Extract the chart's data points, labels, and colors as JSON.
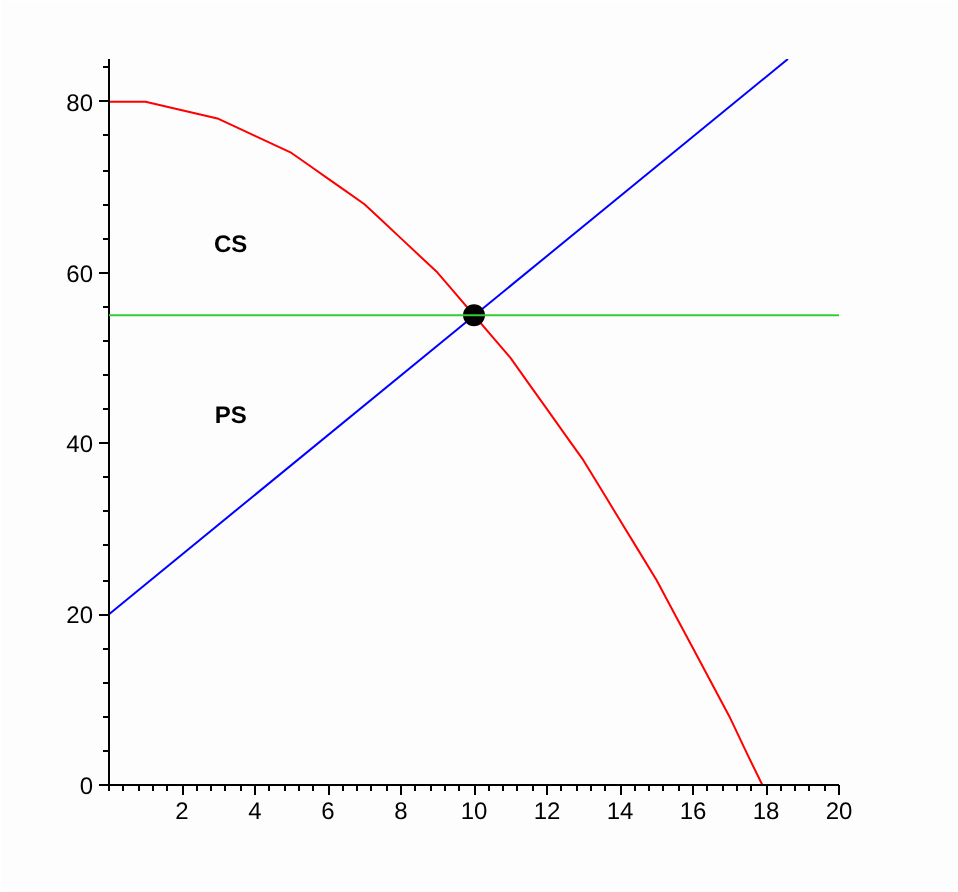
{
  "chart_data": {
    "type": "line",
    "xlim": [
      0,
      20
    ],
    "ylim": [
      0,
      85
    ],
    "xticks": [
      2,
      4,
      6,
      8,
      10,
      12,
      14,
      16,
      18,
      20
    ],
    "yticks": [
      0,
      20,
      40,
      60,
      80
    ],
    "series": [
      {
        "color": "#ff0000",
        "x": [
          0,
          0.5,
          1,
          1.5,
          2,
          2.5,
          3,
          3.5,
          4,
          4.5,
          5,
          5.5,
          6,
          6.5,
          7,
          7.5,
          8,
          8.5,
          9,
          9.5,
          10,
          10.5,
          11,
          11.5,
          12,
          12.5,
          13,
          13.5,
          14,
          14.5,
          15,
          15.5,
          16,
          16.5,
          17,
          17.5,
          17.9
        ],
        "values": [
          80,
          80,
          80,
          79.5,
          79,
          78.5,
          78,
          77,
          76,
          75,
          74,
          72.5,
          71,
          69.5,
          68,
          66,
          64,
          62,
          60,
          57.5,
          55,
          52.5,
          50,
          47,
          44,
          41,
          38,
          34.5,
          31,
          27.5,
          24,
          20,
          16,
          12,
          8,
          3.5,
          0
        ]
      },
      {
        "color": "#0000ff",
        "x": [
          0,
          18.6
        ],
        "values": [
          20,
          85
        ]
      },
      {
        "type": "scatter",
        "marker": "circle",
        "color": "#000000",
        "x": [
          10
        ],
        "values": [
          55
        ]
      }
    ],
    "ref_lines": [
      {
        "axis": "y",
        "value": 55,
        "color": "#33cc33"
      }
    ],
    "annotations": [
      "CS",
      "PS"
    ]
  }
}
